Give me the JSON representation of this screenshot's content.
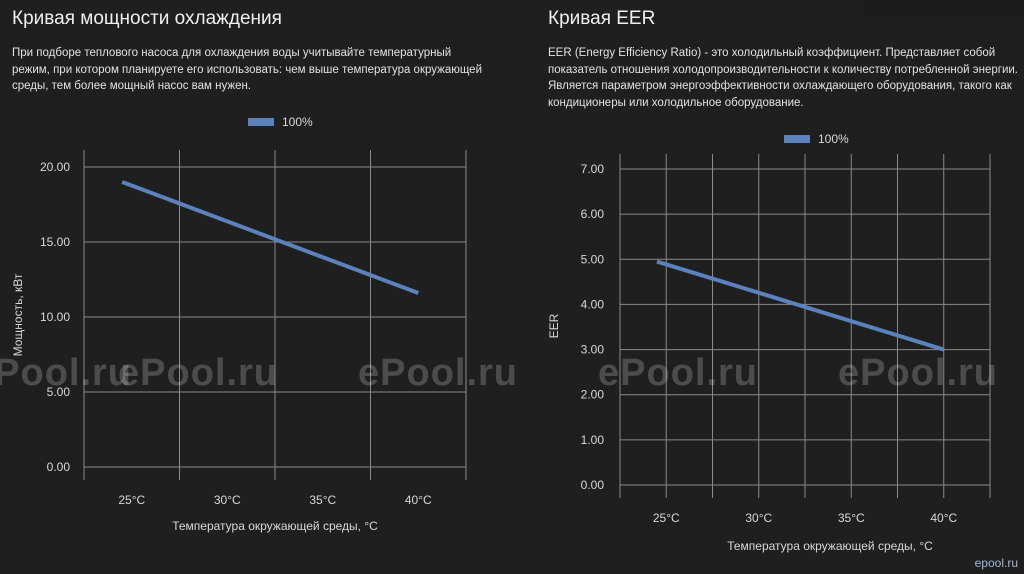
{
  "left": {
    "title": "Кривая мощности охлаждения",
    "description": "При подборе теплового насоса для охлаждения воды учитывайте температурный режим, при котором планируете его использовать: чем выше температура окружающей среды, тем более мощный насос вам нужен."
  },
  "right": {
    "title": "Кривая EER",
    "description": "EER (Energy Efficiency Ratio) - это холодильный коэффициент. Представляет собой показатель отношения холодопроизводительности к количеству потребленной энергии. Является параметром энергоэффективности охлаждающего оборудования, такого как кондиционеры или холодильное оборудование."
  },
  "watermarks": [
    "ePool.ru",
    "ePool.ru",
    "ePool.ru",
    "ePool.ru",
    "ePool.ru"
  ],
  "corner_watermark": "epool.ru",
  "chart_data": [
    {
      "type": "line",
      "categories": [
        "25°C",
        "30°C",
        "35°C",
        "40°C"
      ],
      "x_numeric": [
        25,
        30,
        35,
        40
      ],
      "x_range": [
        22.5,
        42.5
      ],
      "series": [
        {
          "name": "100%",
          "x": [
            24.5,
            40
          ],
          "values": [
            19.0,
            11.6
          ],
          "color": "#5b82bd"
        }
      ],
      "title": "",
      "xlabel": "Температура окружающей среды, °С",
      "ylabel": "Мощность, кВт",
      "ylim": [
        0,
        20
      ],
      "yticks": [
        "0.00",
        "5.00",
        "10.00",
        "15.00",
        "20.00"
      ],
      "ytick_values": [
        0,
        5,
        10,
        15,
        20
      ],
      "vgrid_x": [
        22.5,
        27.5,
        32.5,
        37.5,
        42.5
      ],
      "grid": true,
      "legend": "top-center"
    },
    {
      "type": "line",
      "categories": [
        "25°C",
        "30°C",
        "35°C",
        "40°C"
      ],
      "x_numeric": [
        25,
        30,
        35,
        40
      ],
      "x_range": [
        22.5,
        42.5
      ],
      "series": [
        {
          "name": "100%",
          "x": [
            24.5,
            40
          ],
          "values": [
            4.95,
            3.0
          ],
          "color": "#5b82bd"
        }
      ],
      "title": "",
      "xlabel": "Температура окружающей среды, °С",
      "ylabel": "EER",
      "ylim": [
        0,
        7
      ],
      "yticks": [
        "0.00",
        "1.00",
        "2.00",
        "3.00",
        "4.00",
        "5.00",
        "6.00",
        "7.00"
      ],
      "ytick_values": [
        0,
        1,
        2,
        3,
        4,
        5,
        6,
        7
      ],
      "vgrid_x": [
        22.5,
        25,
        27.5,
        30,
        32.5,
        35,
        37.5,
        40,
        42.5
      ],
      "grid": true,
      "legend": "top-center"
    }
  ]
}
